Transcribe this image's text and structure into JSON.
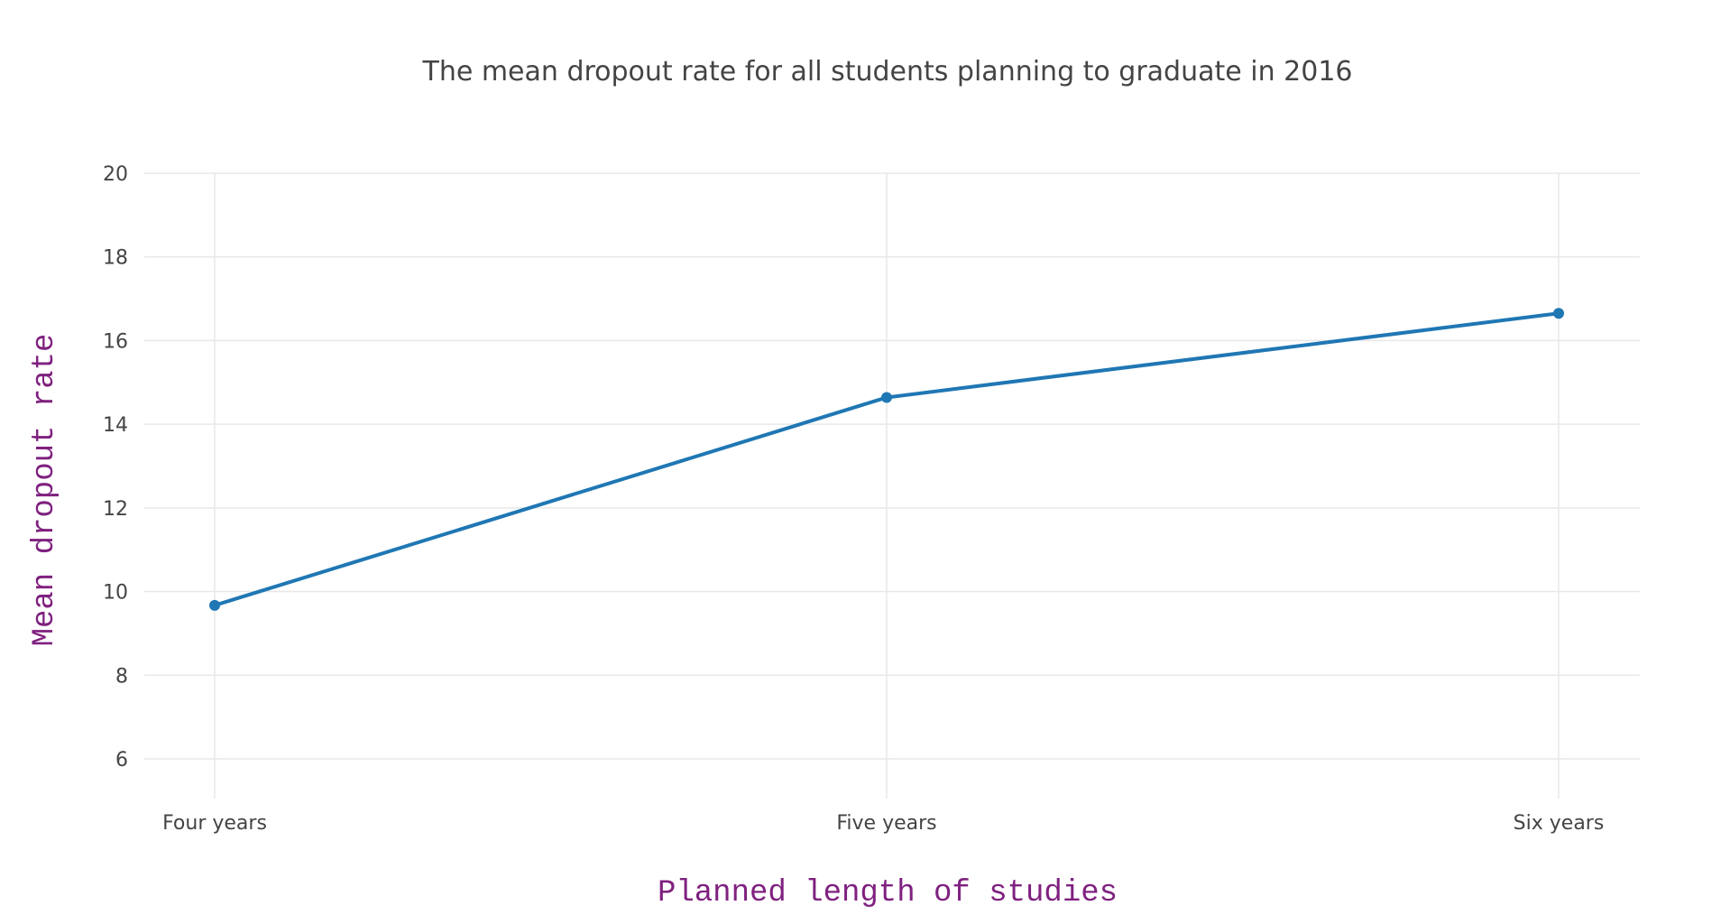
{
  "chart_data": {
    "type": "line",
    "title": "The mean dropout rate for all students planning to graduate in 2016",
    "xlabel": "Planned length of studies",
    "ylabel": "Mean dropout rate",
    "categories": [
      "Four years",
      "Five years",
      "Six years"
    ],
    "series": [
      {
        "values": [
          9.67,
          14.64,
          16.65
        ],
        "color": "#1f77b4"
      }
    ],
    "ylim": [
      5.05,
      20
    ],
    "yticks": [
      6,
      8,
      10,
      12,
      14,
      16,
      18,
      20
    ],
    "grid": true,
    "legend": "none",
    "axis_title_color": "#7f217f"
  }
}
